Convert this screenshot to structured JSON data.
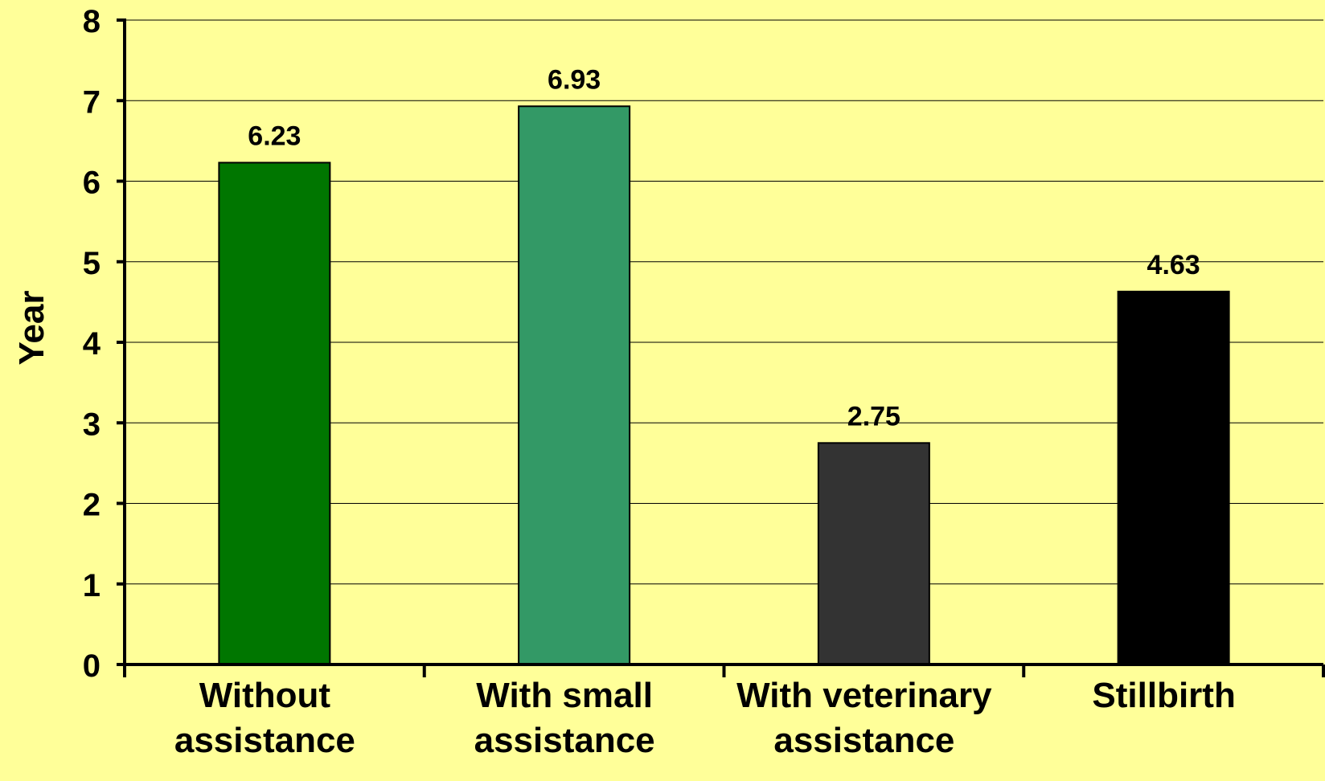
{
  "chart_data": {
    "type": "bar",
    "title": "",
    "xlabel": "",
    "ylabel": "Year",
    "ylim": [
      0,
      8
    ],
    "yticks": [
      "0",
      "1",
      "2",
      "3",
      "4",
      "5",
      "6",
      "7",
      "8"
    ],
    "grid": true,
    "categories": [
      [
        "Without",
        "assistance"
      ],
      [
        "With small",
        "assistance"
      ],
      [
        "With veterinary",
        "assistance"
      ],
      [
        "Stillbirth"
      ]
    ],
    "values": [
      6.23,
      6.93,
      2.75,
      4.63
    ],
    "data_labels": [
      "6.23",
      "6.93",
      "2.75",
      "4.63"
    ],
    "colors": [
      "#007600",
      "#339966",
      "#333333",
      "#000000"
    ]
  },
  "colors": {
    "background": "#ffff99",
    "gridline": "#000000",
    "axis": "#000000"
  }
}
